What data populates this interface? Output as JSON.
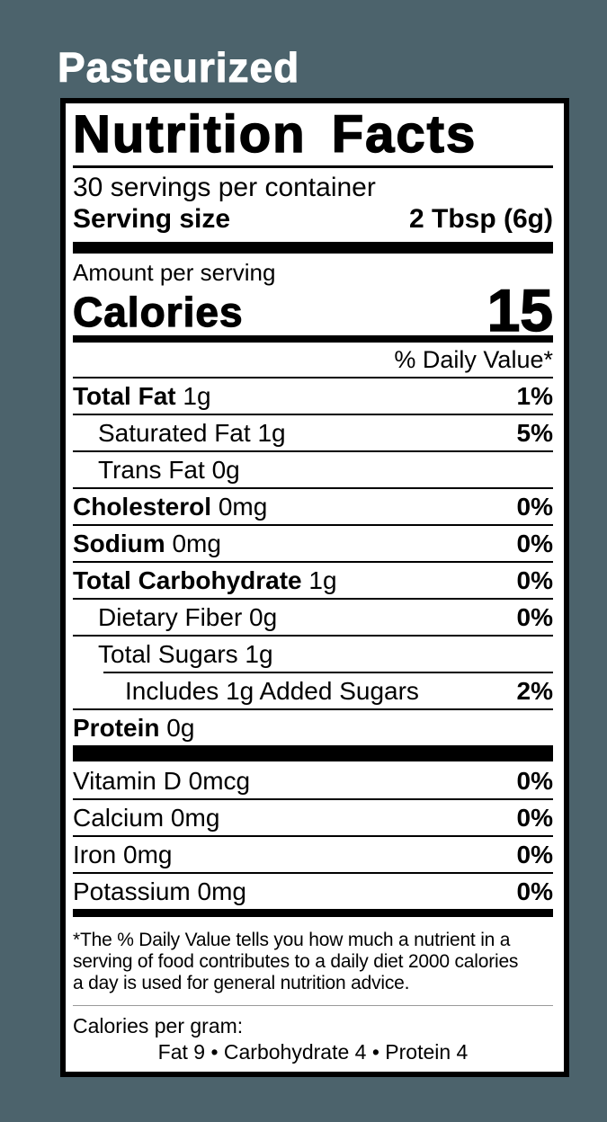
{
  "background_color": "#4c636c",
  "page_title": "Pasteurized",
  "label": {
    "title": "Nutrition Facts",
    "servings_per_container": "30 servings per container",
    "serving_size_label": "Serving size",
    "serving_size_value": "2 Tbsp (6g)",
    "amount_per_serving": "Amount per serving",
    "calories_label": "Calories",
    "calories_value": "15",
    "daily_value_header": "% Daily Value*",
    "nutrients": [
      {
        "name": "Total Fat",
        "amount": "1g",
        "dv": "1%"
      },
      {
        "name": "Saturated Fat",
        "amount": "1g",
        "dv": "5%"
      },
      {
        "name": "Trans Fat",
        "amount": "0g",
        "dv": ""
      },
      {
        "name": "Cholesterol",
        "amount": "0mg",
        "dv": "0%"
      },
      {
        "name": "Sodium",
        "amount": "0mg",
        "dv": "0%"
      },
      {
        "name": "Total Carbohydrate",
        "amount": "1g",
        "dv": "0%"
      },
      {
        "name": "Dietary Fiber",
        "amount": "0g",
        "dv": "0%"
      },
      {
        "name": "Total Sugars",
        "amount": "1g",
        "dv": ""
      },
      {
        "name": "Includes 1g Added Sugars",
        "amount": "",
        "dv": "2%"
      },
      {
        "name": "Protein",
        "amount": "0g",
        "dv": ""
      }
    ],
    "micronutrients": [
      {
        "name": "Vitamin D",
        "amount": "0mcg",
        "dv": "0%"
      },
      {
        "name": "Calcium",
        "amount": "0mg",
        "dv": "0%"
      },
      {
        "name": "Iron",
        "amount": "0mg",
        "dv": "0%"
      },
      {
        "name": "Potassium",
        "amount": "0mg",
        "dv": "0%"
      }
    ],
    "footnote_lines": [
      "*The % Daily Value tells you how much a nutrient in a",
      "serving of food contributes to a daily diet 2000 calories",
      "a day is used for general nutrition advice."
    ],
    "calories_per_gram_label": "Calories per gram:",
    "calories_per_gram_values": "Fat 9  •  Carbohydrate 4  •  Protein 4"
  }
}
